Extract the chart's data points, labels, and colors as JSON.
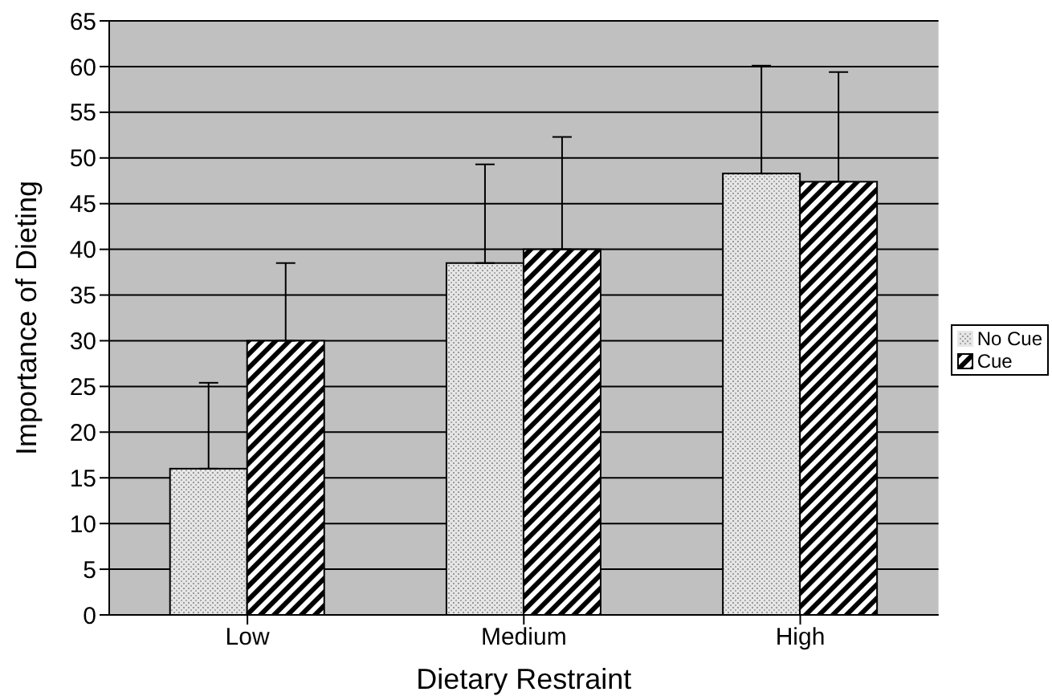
{
  "chart_data": {
    "type": "bar",
    "xlabel": "Dietary Restraint",
    "ylabel": "Importance of Dieting",
    "categories": [
      "Low",
      "Medium",
      "High"
    ],
    "series": [
      {
        "name": "No Cue",
        "color": "#e6e6e6",
        "values": [
          16,
          38.5,
          48.3
        ],
        "errors": [
          [
            16,
            25.4
          ],
          [
            38.5,
            49.3
          ],
          [
            48.3,
            60.1
          ]
        ]
      },
      {
        "name": "Cue",
        "color": "#000000",
        "values": [
          30,
          40,
          47.4
        ],
        "errors": [
          [
            30,
            38.5
          ],
          [
            40,
            52.3
          ],
          [
            47.4,
            59.4
          ]
        ]
      }
    ],
    "ylim": [
      0,
      65
    ],
    "yticks": [
      0,
      5,
      10,
      15,
      20,
      25,
      30,
      35,
      40,
      45,
      50,
      55,
      60,
      65
    ],
    "grid": "y",
    "legend": "right"
  }
}
